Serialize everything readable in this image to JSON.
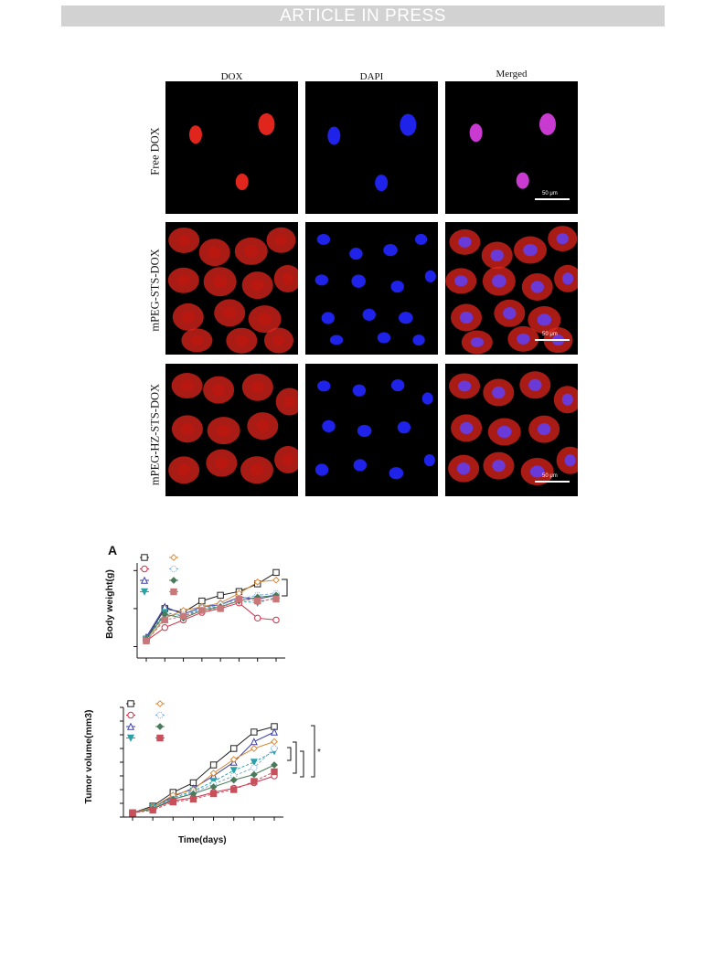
{
  "header": {
    "banner": "ARTICLE IN PRESS"
  },
  "microscopy": {
    "columns": [
      "DOX",
      "DAPI",
      "Merged"
    ],
    "rows": [
      "Free DOX",
      "mPEG-STS-DOX",
      "mPEG-HZ-STS-DOX"
    ],
    "scale_bar": "50 μm",
    "colors": {
      "dox": "#e0261c",
      "dapi": "#1f22e8",
      "merged": "#c93ad0"
    }
  },
  "figure": {
    "panel_letter": "A"
  },
  "chart_data": [
    {
      "type": "line",
      "ylabel": "Body weight(g)",
      "xlabel": "",
      "x": [
        0,
        1,
        2,
        3,
        4,
        5,
        6,
        7
      ],
      "ylim": [
        0,
        5
      ],
      "series": [
        {
          "marker": "square-open",
          "color": "#222222",
          "values": [
            1.0,
            2.6,
            2.4,
            3.0,
            3.3,
            3.5,
            3.9,
            4.5
          ]
        },
        {
          "marker": "circle-open",
          "color": "#d0304a",
          "values": [
            0.9,
            1.6,
            2.0,
            2.4,
            2.6,
            2.9,
            2.1,
            2.0
          ]
        },
        {
          "marker": "triangle-open",
          "color": "#3b3ea8",
          "values": [
            1.1,
            2.7,
            2.3,
            2.7,
            2.8,
            3.2,
            3.1,
            3.3
          ]
        },
        {
          "marker": "triangle-down",
          "color": "#2aa0a8",
          "values": [
            1.0,
            2.4,
            2.2,
            2.6,
            2.7,
            3.0,
            2.9,
            3.2
          ]
        },
        {
          "marker": "diamond-open",
          "color": "#d98a3a",
          "values": [
            0.9,
            2.1,
            2.5,
            2.7,
            2.9,
            3.4,
            4.0,
            4.1
          ]
        },
        {
          "marker": "circle-dotted",
          "color": "#7aa8d8",
          "values": [
            1.0,
            2.2,
            2.3,
            2.6,
            2.8,
            3.1,
            3.3,
            3.4
          ]
        },
        {
          "marker": "diamond-filled",
          "color": "#4a7a5a",
          "values": [
            1.0,
            2.3,
            2.1,
            2.5,
            2.7,
            3.0,
            3.2,
            3.3
          ]
        },
        {
          "marker": "square-filled",
          "color": "#c87878",
          "values": [
            0.9,
            2.0,
            2.2,
            2.5,
            2.6,
            3.1,
            3.0,
            3.1
          ]
        }
      ]
    },
    {
      "type": "line",
      "ylabel": "Tumor volume(mm3)",
      "xlabel": "Time(days)",
      "x": [
        0,
        1,
        2,
        3,
        4,
        5,
        6,
        7
      ],
      "ylim": [
        0,
        8
      ],
      "series": [
        {
          "marker": "square-open",
          "color": "#222222",
          "values": [
            0.3,
            0.8,
            1.8,
            2.5,
            3.8,
            5.0,
            6.2,
            6.6
          ]
        },
        {
          "marker": "circle-open",
          "color": "#d0304a",
          "values": [
            0.3,
            0.6,
            1.2,
            1.4,
            1.8,
            2.1,
            2.5,
            3.0
          ]
        },
        {
          "marker": "triangle-open",
          "color": "#3b3ea8",
          "values": [
            0.3,
            0.7,
            1.5,
            2.1,
            3.0,
            4.0,
            5.5,
            6.2
          ]
        },
        {
          "marker": "triangle-down",
          "color": "#2aa0a8",
          "values": [
            0.3,
            0.7,
            1.4,
            1.9,
            2.6,
            3.4,
            4.0,
            4.8
          ]
        },
        {
          "marker": "diamond-open",
          "color": "#d98a3a",
          "values": [
            0.3,
            0.7,
            1.6,
            2.0,
            3.2,
            4.2,
            5.0,
            5.5
          ]
        },
        {
          "marker": "circle-dotted",
          "color": "#7aa8d8",
          "values": [
            0.3,
            0.6,
            1.3,
            1.8,
            2.4,
            3.0,
            3.6,
            5.0
          ]
        },
        {
          "marker": "diamond-filled",
          "color": "#4a7a5a",
          "values": [
            0.3,
            0.6,
            1.3,
            1.7,
            2.2,
            2.7,
            3.1,
            3.8
          ]
        },
        {
          "marker": "square-filled",
          "color": "#c8505a",
          "values": [
            0.3,
            0.5,
            1.1,
            1.3,
            1.7,
            2.0,
            2.6,
            3.3
          ]
        }
      ],
      "annotations": [
        "*"
      ]
    }
  ]
}
